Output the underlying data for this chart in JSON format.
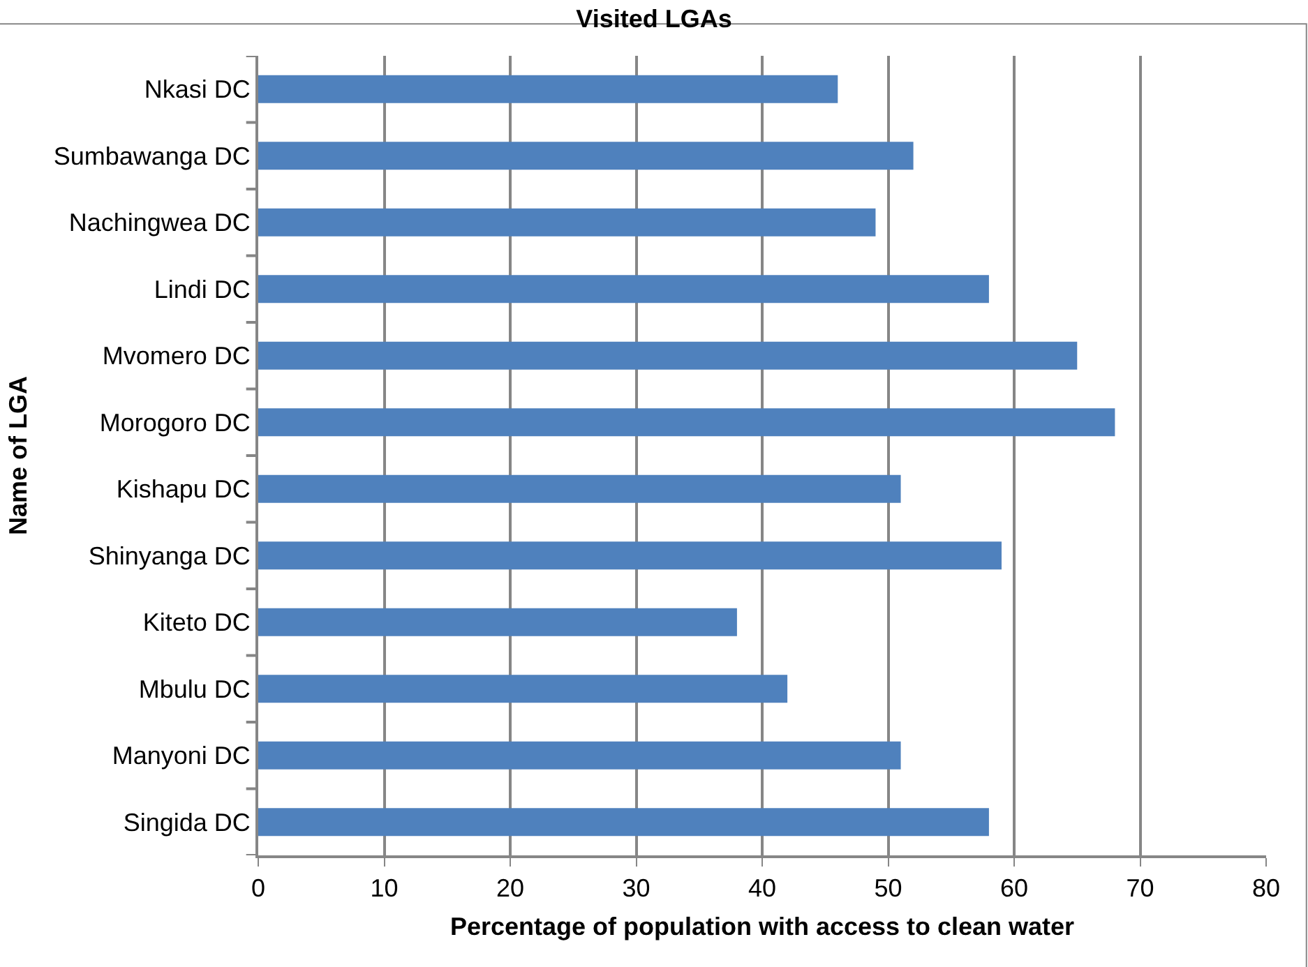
{
  "chart_data": {
    "type": "bar",
    "orientation": "horizontal",
    "title": "Visited LGAs",
    "xlabel": "Percentage of population with access to clean water",
    "ylabel": "Name of LGA",
    "categories": [
      "Nkasi DC",
      "Sumbawanga DC",
      "Nachingwea DC",
      "Lindi DC",
      "Mvomero DC",
      "Morogoro DC",
      "Kishapu DC",
      "Shinyanga DC",
      "Kiteto DC",
      "Mbulu DC",
      "Manyoni DC",
      "Singida DC"
    ],
    "values": [
      46,
      52,
      49,
      58,
      65,
      68,
      51,
      59,
      38,
      42,
      51,
      58
    ],
    "color": "#4f81bd",
    "xlim": [
      0,
      80
    ],
    "xticks": [
      0,
      10,
      20,
      30,
      40,
      50,
      60,
      70,
      80
    ],
    "grid": "x"
  }
}
